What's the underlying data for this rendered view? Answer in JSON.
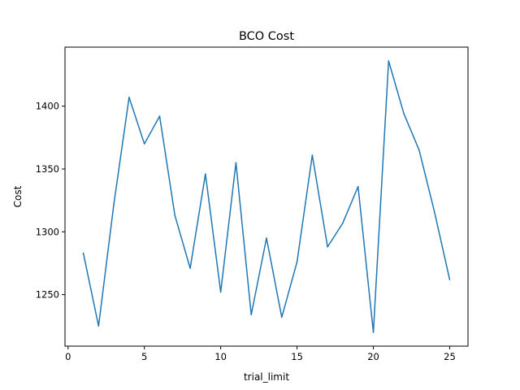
{
  "chart_data": {
    "type": "line",
    "title": "BCO Cost",
    "xlabel": "trial_limit",
    "ylabel": "Cost",
    "xlim": [
      -0.2,
      26.2
    ],
    "ylim": [
      1209,
      1447
    ],
    "xticks": [
      0,
      5,
      10,
      15,
      20,
      25
    ],
    "yticks": [
      1250,
      1300,
      1350,
      1400
    ],
    "grid": false,
    "legend": "none",
    "series": [
      {
        "color": "#1f77b4",
        "x": [
          1,
          2,
          3,
          4,
          5,
          6,
          7,
          8,
          9,
          10,
          11,
          12,
          13,
          14,
          15,
          16,
          17,
          18,
          19,
          20,
          21,
          22,
          23,
          24,
          25
        ],
        "y": [
          1283,
          1225,
          1322,
          1407,
          1370,
          1392,
          1313,
          1271,
          1346,
          1252,
          1355,
          1234,
          1295,
          1232,
          1276,
          1361,
          1288,
          1307,
          1336,
          1220,
          1436,
          1394,
          1365,
          1316,
          1262
        ]
      }
    ]
  }
}
